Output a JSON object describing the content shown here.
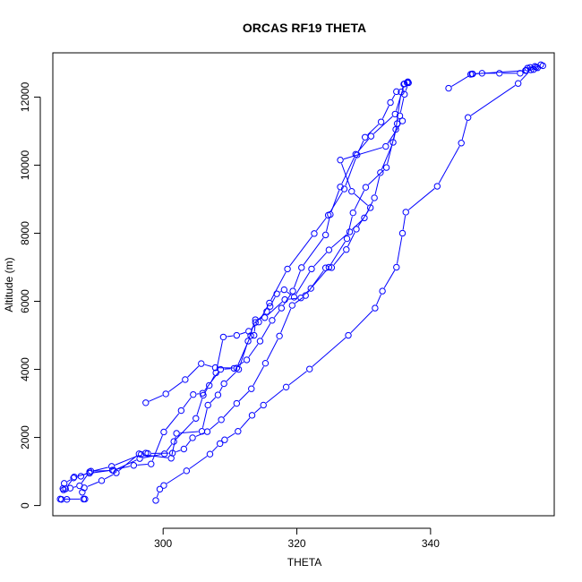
{
  "chart_data": {
    "type": "line",
    "title": "ORCAS RF19 THETA",
    "xlabel": "THETA",
    "ylabel": "Altitude (m)",
    "xlim": [
      283.5,
      358.5
    ],
    "ylim": [
      -300,
      13300
    ],
    "x_ticks": [
      300,
      320,
      340
    ],
    "y_ticks": [
      0,
      2000,
      4000,
      6000,
      8000,
      10000,
      12000
    ],
    "grid": false,
    "legend": "none",
    "marker": "open-circle",
    "color": "#0000ff",
    "series": [
      {
        "points": [
          [
            298.9,
            150
          ],
          [
            299.5,
            480
          ],
          [
            300.1,
            590
          ],
          [
            303.5,
            1020
          ],
          [
            307.0,
            1510
          ],
          [
            308.5,
            1820
          ],
          [
            309.2,
            1930
          ],
          [
            311.2,
            2180
          ],
          [
            313.3,
            2650
          ],
          [
            315.0,
            2950
          ],
          [
            318.4,
            3480
          ],
          [
            321.9,
            4010
          ],
          [
            327.7,
            5000
          ],
          [
            331.7,
            5800
          ],
          [
            332.8,
            6300
          ],
          [
            334.9,
            7000
          ],
          [
            335.8,
            8000
          ],
          [
            336.3,
            8620
          ],
          [
            341.0,
            9380
          ],
          [
            344.6,
            10650
          ],
          [
            345.6,
            11400
          ],
          [
            353.1,
            12400
          ],
          [
            355.0,
            12800
          ],
          [
            356.5,
            12950
          ],
          [
            356.8,
            12920
          ],
          [
            355.8,
            12880
          ],
          [
            354.5,
            12850
          ],
          [
            353.4,
            12700
          ],
          [
            350.3,
            12700
          ],
          [
            347.7,
            12700
          ],
          [
            346.3,
            12680
          ],
          [
            346.0,
            12670
          ]
        ]
      },
      {
        "points": [
          [
            342.7,
            12260
          ],
          [
            346.2,
            12680
          ],
          [
            354.2,
            12780
          ],
          [
            355.6,
            12900
          ],
          [
            354.9,
            12870
          ],
          [
            356.0,
            12860
          ],
          [
            355.4,
            12810
          ],
          [
            354.3,
            12790
          ]
        ]
      },
      {
        "points": [
          [
            285.6,
            180
          ],
          [
            284.8,
            180
          ],
          [
            284.6,
            190
          ],
          [
            288.1,
            190
          ],
          [
            288.3,
            190
          ],
          [
            287.9,
            390
          ],
          [
            288.2,
            520
          ],
          [
            290.8,
            730
          ],
          [
            293.0,
            960
          ],
          [
            296.4,
            1520
          ],
          [
            297.4,
            1540
          ],
          [
            297.7,
            1530
          ],
          [
            301.4,
            1540
          ],
          [
            303.1,
            1660
          ],
          [
            304.4,
            1990
          ],
          [
            306.6,
            2170
          ],
          [
            308.7,
            2520
          ],
          [
            311.0,
            3000
          ],
          [
            313.2,
            3430
          ],
          [
            315.3,
            4180
          ],
          [
            317.4,
            4980
          ],
          [
            319.3,
            5880
          ],
          [
            321.3,
            6170
          ],
          [
            324.3,
            6980
          ],
          [
            325.2,
            6990
          ],
          [
            327.4,
            7520
          ],
          [
            328.9,
            8120
          ],
          [
            331.0,
            8750
          ],
          [
            328.2,
            9230
          ],
          [
            326.5,
            10150
          ],
          [
            333.3,
            10550
          ],
          [
            335.8,
            11300
          ]
        ]
      },
      {
        "points": [
          [
            285.0,
            500
          ],
          [
            286.1,
            510
          ],
          [
            287.5,
            580
          ],
          [
            289.0,
            990
          ],
          [
            292.3,
            1150
          ],
          [
            296.7,
            1500
          ],
          [
            301.2,
            1390
          ],
          [
            302.0,
            2120
          ],
          [
            305.8,
            2180
          ],
          [
            306.7,
            2950
          ],
          [
            308.2,
            3250
          ],
          [
            309.1,
            3580
          ],
          [
            311.3,
            4000
          ],
          [
            312.7,
            4830
          ],
          [
            313.8,
            5460
          ],
          [
            315.2,
            5520
          ],
          [
            318.2,
            6050
          ],
          [
            320.6,
            6100
          ],
          [
            322.1,
            6380
          ],
          [
            324.8,
            7000
          ],
          [
            327.5,
            7840
          ],
          [
            328.4,
            8600
          ],
          [
            330.3,
            9350
          ],
          [
            333.4,
            9930
          ],
          [
            334.8,
            11050
          ],
          [
            335.6,
            12150
          ],
          [
            336.0,
            12380
          ],
          [
            336.6,
            12450
          ]
        ]
      },
      {
        "points": [
          [
            285.4,
            490
          ],
          [
            286.7,
            840
          ],
          [
            289.0,
            950
          ],
          [
            292.4,
            1040
          ],
          [
            295.6,
            1180
          ],
          [
            298.2,
            1220
          ],
          [
            300.1,
            2160
          ],
          [
            302.7,
            2790
          ],
          [
            304.5,
            3260
          ],
          [
            305.9,
            3300
          ],
          [
            308.6,
            4000
          ],
          [
            310.6,
            4030
          ],
          [
            312.5,
            4280
          ],
          [
            314.5,
            4830
          ],
          [
            316.3,
            5440
          ],
          [
            317.7,
            5800
          ],
          [
            319.4,
            6300
          ],
          [
            320.7,
            6990
          ],
          [
            324.3,
            7950
          ],
          [
            325.0,
            8550
          ],
          [
            326.5,
            9360
          ],
          [
            328.8,
            10320
          ],
          [
            331.1,
            10850
          ],
          [
            334.7,
            11500
          ],
          [
            336.1,
            12390
          ],
          [
            336.5,
            12420
          ]
        ]
      },
      {
        "points": [
          [
            297.4,
            3020
          ],
          [
            300.4,
            3280
          ],
          [
            303.3,
            3700
          ],
          [
            305.7,
            4170
          ],
          [
            307.8,
            4050
          ],
          [
            311.0,
            4040
          ],
          [
            313.1,
            4990
          ],
          [
            313.6,
            5000
          ],
          [
            313.8,
            5380
          ],
          [
            315.5,
            5700
          ],
          [
            316.0,
            5850
          ],
          [
            317.0,
            6220
          ],
          [
            318.1,
            6340
          ],
          [
            319.6,
            6120
          ],
          [
            322.2,
            6950
          ],
          [
            324.8,
            7510
          ],
          [
            327.9,
            8040
          ],
          [
            330.1,
            8450
          ],
          [
            331.6,
            9040
          ],
          [
            332.5,
            9780
          ],
          [
            334.4,
            10670
          ],
          [
            335.0,
            11220
          ],
          [
            335.4,
            11450
          ],
          [
            336.1,
            12080
          ],
          [
            336.7,
            12420
          ]
        ]
      },
      {
        "points": [
          [
            285.1,
            460
          ],
          [
            285.2,
            650
          ],
          [
            286.6,
            810
          ],
          [
            287.7,
            860
          ],
          [
            289.2,
            1010
          ],
          [
            292.6,
            1030
          ],
          [
            296.5,
            1380
          ],
          [
            300.2,
            1520
          ],
          [
            301.6,
            1880
          ],
          [
            304.9,
            2560
          ],
          [
            306.0,
            3240
          ],
          [
            306.9,
            3530
          ],
          [
            307.9,
            3900
          ],
          [
            309.0,
            4950
          ],
          [
            311.0,
            5000
          ],
          [
            312.8,
            5120
          ],
          [
            314.3,
            5390
          ],
          [
            315.9,
            5950
          ],
          [
            318.6,
            6950
          ],
          [
            322.6,
            7990
          ],
          [
            324.7,
            8530
          ],
          [
            327.1,
            9300
          ],
          [
            329.0,
            10300
          ],
          [
            330.2,
            10820
          ],
          [
            332.6,
            11270
          ],
          [
            334.0,
            11840
          ],
          [
            334.9,
            12160
          ]
        ]
      }
    ]
  }
}
